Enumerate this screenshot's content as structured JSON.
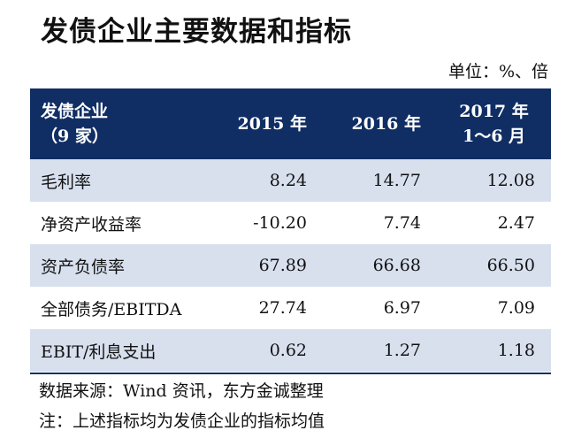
{
  "title": "发债企业主要数据和指标",
  "unit": "单位：%、倍",
  "table": {
    "header": {
      "col0_line1": "发债企业",
      "col0_line2": "（9 家）",
      "col1": "2015 年",
      "col2": "2016 年",
      "col3_line1": "2017 年",
      "col3_line2": "1～6 月"
    },
    "rows": [
      {
        "label": "毛利率",
        "values": [
          "8.24",
          "14.77",
          "12.08"
        ]
      },
      {
        "label": "净资产收益率",
        "values": [
          "-10.20",
          "7.74",
          "2.47"
        ]
      },
      {
        "label": "资产负债率",
        "values": [
          "67.89",
          "66.68",
          "66.50"
        ]
      },
      {
        "label": "全部债务/EBITDA",
        "values": [
          "27.74",
          "6.97",
          "7.09"
        ]
      },
      {
        "label": "EBIT/利息支出",
        "values": [
          "0.62",
          "1.27",
          "1.18"
        ]
      }
    ]
  },
  "source": "数据来源：Wind 资讯，东方金诚整理",
  "note": "注：上述指标均为发债企业的指标均值",
  "colors": {
    "header_bg": "#102e64",
    "header_text": "#ffffff",
    "stripe": "#d8e0ee"
  }
}
